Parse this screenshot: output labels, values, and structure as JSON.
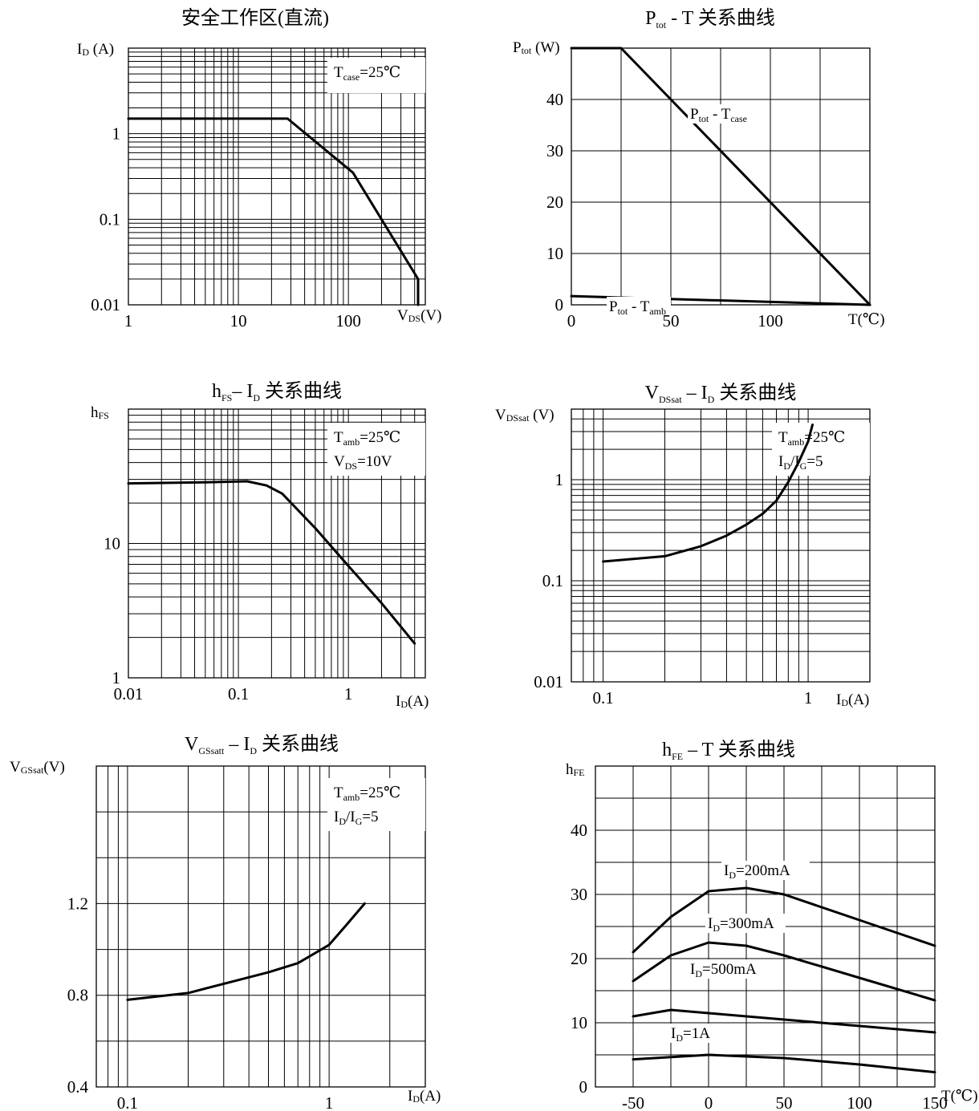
{
  "chart_data": [
    {
      "id": "soa",
      "type": "line",
      "title_html": "安全工作区(直流)",
      "ylabel_html": "I<tspan class='sub' dy='2'>D</tspan><tspan dy='-2'> (A)</tspan>",
      "xlabel_html": "V<tspan class='sub' dy='2'>DS</tspan><tspan dy='-2'>(V)</tspan>",
      "xscale": "log",
      "yscale": "log",
      "xlim": [
        1,
        500
      ],
      "ylim": [
        0.01,
        10
      ],
      "x_ticks": [
        {
          "v": 1,
          "t": "1"
        },
        {
          "v": 10,
          "t": "10"
        },
        {
          "v": 100,
          "t": "100"
        }
      ],
      "y_ticks": [
        {
          "v": 0.01,
          "t": "0.01"
        },
        {
          "v": 0.1,
          "t": "0.1"
        },
        {
          "v": 1,
          "t": "1"
        }
      ],
      "annotation_lines_html": [
        "T<tspan class='sub' dy='4'>case</tspan><tspan dy='-4'>=25℃</tspan>"
      ],
      "series": [
        {
          "x": [
            1,
            28,
            110,
            430,
            430
          ],
          "y": [
            1.5,
            1.5,
            0.35,
            0.02,
            0.01
          ]
        }
      ]
    },
    {
      "id": "ptot",
      "type": "line",
      "title_html": "P<tspan class='sub' dy='5'>tot</tspan><tspan dy='-5'> - T  关系曲线</tspan>",
      "ylabel_html": "P<tspan class='sub' dy='2'>tot</tspan><tspan dy='-2'> (W)</tspan>",
      "xlabel_html": "T(℃)",
      "xscale": "linear",
      "yscale": "linear",
      "xlim": [
        0,
        150
      ],
      "ylim": [
        0,
        50
      ],
      "x_ticks": [
        {
          "v": 0,
          "t": "0"
        },
        {
          "v": 50,
          "t": "50"
        },
        {
          "v": 100,
          "t": "100"
        }
      ],
      "y_ticks": [
        {
          "v": 0,
          "t": "0"
        },
        {
          "v": 10,
          "t": "10"
        },
        {
          "v": 20,
          "t": "20"
        },
        {
          "v": 30,
          "t": "30"
        },
        {
          "v": 40,
          "t": "40"
        }
      ],
      "series": [
        {
          "name": "Ptot - Tcase",
          "x": [
            0,
            25,
            150
          ],
          "y": [
            50,
            50,
            0
          ]
        },
        {
          "name": "Ptot - Tamb",
          "x": [
            0,
            150
          ],
          "y": [
            1.7,
            0
          ]
        }
      ],
      "curve_labels_html": [
        "P<tspan class='sub' dy='4'>tot</tspan><tspan dy='-4'> - T</tspan><tspan class='sub' dy='4'>case</tspan>",
        "P<tspan class='sub' dy='4'>tot</tspan><tspan dy='-4'> - T</tspan><tspan class='sub' dy='4'>amb</tspan>"
      ]
    },
    {
      "id": "hfs",
      "type": "line",
      "title_html": "h<tspan class='sub' dy='5'>FS</tspan><tspan dy='-5'>– I</tspan><tspan class='sub' dy='5'>D</tspan><tspan dy='-5'> 关系曲线</tspan>",
      "ylabel_html": "h<tspan class='sub' dy='2'>FS</tspan>",
      "xlabel_html": "I<tspan class='sub' dy='2'>D</tspan><tspan dy='-2'>(A)</tspan>",
      "xscale": "log",
      "yscale": "log",
      "xlim": [
        0.01,
        5
      ],
      "ylim": [
        1,
        100
      ],
      "x_ticks": [
        {
          "v": 0.01,
          "t": "0.01"
        },
        {
          "v": 0.1,
          "t": "0.1"
        },
        {
          "v": 1,
          "t": "1"
        }
      ],
      "y_ticks": [
        {
          "v": 1,
          "t": "1"
        },
        {
          "v": 10,
          "t": "10"
        }
      ],
      "annotation_lines_html": [
        "T<tspan class='sub' dy='4'>amb</tspan><tspan dy='-4'>=25℃</tspan>",
        "V<tspan class='sub' dy='4'>DS</tspan><tspan dy='-4'>=10V</tspan>"
      ],
      "series": [
        {
          "x": [
            0.01,
            0.05,
            0.12,
            0.18,
            0.25,
            0.5,
            1,
            2,
            4
          ],
          "y": [
            28,
            28.5,
            29,
            27,
            23.5,
            13,
            6.8,
            3.6,
            1.8
          ]
        }
      ]
    },
    {
      "id": "vdssat",
      "type": "line",
      "title_html": "V<tspan class='sub' dy='5'>DSsat</tspan><tspan dy='-5'> – I</tspan><tspan class='sub' dy='5'>D</tspan><tspan dy='-5'> 关系曲线</tspan>",
      "ylabel_html": "V<tspan class='sub' dy='2'>DSsat</tspan><tspan dy='-2'> (V)</tspan>",
      "xlabel_html": "I<tspan class='sub' dy='2'>D</tspan><tspan dy='-2'>(A)</tspan>",
      "xscale": "log",
      "yscale": "log",
      "xlim": [
        0.07,
        2
      ],
      "ylim": [
        0.01,
        5
      ],
      "x_ticks": [
        {
          "v": 0.1,
          "t": "0.1"
        },
        {
          "v": 1,
          "t": "1"
        }
      ],
      "y_ticks": [
        {
          "v": 0.01,
          "t": "0.01"
        },
        {
          "v": 0.1,
          "t": "0.1"
        },
        {
          "v": 1,
          "t": "1"
        }
      ],
      "annotation_lines_html": [
        "T<tspan class='sub' dy='4'>amb</tspan><tspan dy='-4'>=25℃</tspan>",
        "I<tspan class='sub' dy='4'>D</tspan><tspan dy='-4'>/I</tspan><tspan class='sub' dy='4'>G</tspan><tspan dy='-4'>=5</tspan>"
      ],
      "series": [
        {
          "x": [
            0.1,
            0.2,
            0.3,
            0.4,
            0.5,
            0.6,
            0.7,
            0.8,
            0.9,
            1.0,
            1.05
          ],
          "y": [
            0.155,
            0.175,
            0.22,
            0.28,
            0.36,
            0.46,
            0.62,
            0.95,
            1.5,
            2.4,
            3.5
          ]
        }
      ]
    },
    {
      "id": "vgssat",
      "type": "line",
      "title_html": "V<tspan class='sub' dy='5'>GSsatt</tspan><tspan dy='-5'> – I</tspan><tspan class='sub' dy='5'>D</tspan><tspan dy='-5'> 关系曲线</tspan>",
      "ylabel_html": "V<tspan class='sub' dy='2'>GSsat</tspan><tspan dy='-2'>(V)</tspan>",
      "xlabel_html": "I<tspan class='sub' dy='2'>D</tspan><tspan dy='-2'>(A)</tspan>",
      "xscale": "log",
      "yscale": "linear",
      "xlim": [
        0.07,
        3
      ],
      "ylim": [
        0.4,
        1.8
      ],
      "x_ticks": [
        {
          "v": 0.1,
          "t": "0.1"
        },
        {
          "v": 1,
          "t": "1"
        }
      ],
      "y_ticks": [
        {
          "v": 0.4,
          "t": "0.4"
        },
        {
          "v": 0.8,
          "t": "0.8"
        },
        {
          "v": 1.2,
          "t": "1.2"
        }
      ],
      "annotation_lines_html": [
        "T<tspan class='sub' dy='4'>amb</tspan><tspan dy='-4'>=25℃</tspan>",
        "I<tspan class='sub' dy='4'>D</tspan><tspan dy='-4'>/I</tspan><tspan class='sub' dy='4'>G</tspan><tspan dy='-4'>=5</tspan>"
      ],
      "series": [
        {
          "x": [
            0.1,
            0.2,
            0.3,
            0.5,
            0.7,
            1.0,
            1.2,
            1.5
          ],
          "y": [
            0.78,
            0.81,
            0.85,
            0.9,
            0.94,
            1.02,
            1.1,
            1.2
          ]
        }
      ]
    },
    {
      "id": "hfe",
      "type": "line",
      "title_html": "h<tspan class='sub' dy='5'>FE</tspan><tspan dy='-5'> – T 关系曲线</tspan>",
      "ylabel_html": "h<tspan class='sub' dy='2'>FE</tspan>",
      "xlabel_html": "T(℃)",
      "xscale": "linear",
      "yscale": "linear",
      "xlim": [
        -75,
        150
      ],
      "ylim": [
        0,
        50
      ],
      "x_ticks": [
        {
          "v": -50,
          "t": "-50"
        },
        {
          "v": 0,
          "t": "0"
        },
        {
          "v": 50,
          "t": "50"
        },
        {
          "v": 100,
          "t": "100"
        },
        {
          "v": 150,
          "t": "150"
        }
      ],
      "y_ticks": [
        {
          "v": 0,
          "t": "0"
        },
        {
          "v": 10,
          "t": "10"
        },
        {
          "v": 20,
          "t": "20"
        },
        {
          "v": 30,
          "t": "30"
        },
        {
          "v": 40,
          "t": "40"
        }
      ],
      "series": [
        {
          "name": "ID=200mA",
          "x": [
            -50,
            -25,
            0,
            25,
            50,
            100,
            150
          ],
          "y": [
            21,
            26.5,
            30.5,
            31,
            30,
            26,
            22
          ]
        },
        {
          "name": "ID=300mA",
          "x": [
            -50,
            -25,
            0,
            25,
            50,
            100,
            150
          ],
          "y": [
            16.5,
            20.5,
            22.5,
            22,
            20.5,
            17,
            13.5
          ]
        },
        {
          "name": "ID=500mA",
          "x": [
            -50,
            -25,
            0,
            50,
            100,
            150
          ],
          "y": [
            11,
            12,
            11.5,
            10.5,
            9.5,
            8.5
          ]
        },
        {
          "name": "ID=1A",
          "x": [
            -50,
            0,
            50,
            100,
            150
          ],
          "y": [
            4.3,
            5,
            4.5,
            3.5,
            2.3
          ]
        }
      ],
      "curve_labels_html": [
        "I<tspan class='sub' dy='4'>D</tspan><tspan dy='-4'>=200mA</tspan>",
        "I<tspan class='sub' dy='4'>D</tspan><tspan dy='-4'>=300mA</tspan>",
        "I<tspan class='sub' dy='4'>D</tspan><tspan dy='-4'>=500mA</tspan>",
        "I<tspan class='sub' dy='4'>D</tspan><tspan dy='-4'>=1A</tspan>"
      ]
    }
  ]
}
